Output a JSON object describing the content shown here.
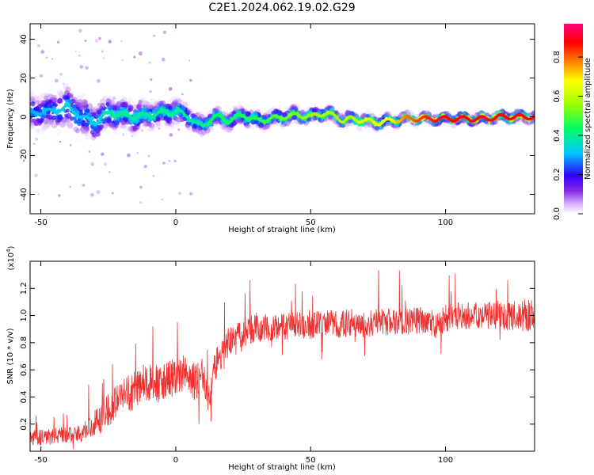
{
  "figure_title": "C2E1.2024.062.19.02.G29",
  "chart_data": [
    {
      "type": "heatmap",
      "title": "",
      "xlabel": "Height of straight line (km)",
      "ylabel": "Frequency (Hz)",
      "xlim": [
        -54,
        133
      ],
      "ylim": [
        -50,
        48
      ],
      "xticks": [
        -50,
        0,
        50,
        100
      ],
      "yticks": [
        -40,
        -20,
        0,
        20,
        40
      ],
      "xtick_labels": [
        "-50",
        "0",
        "50",
        "100"
      ],
      "ytick_labels": [
        "-40",
        "-20",
        "0",
        "20",
        "40"
      ],
      "grid": false,
      "colormap": "rainbow (purple → blue → cyan → green → yellow → red → magenta)",
      "colorbar": {
        "label": "Normalized spectral amplitude",
        "range": [
          0,
          0.97
        ],
        "ticks": [
          0.0,
          0.2,
          0.4,
          0.6,
          0.8
        ],
        "tick_labels": [
          "0.0",
          "0.2",
          "0.4",
          "0.6",
          "0.8"
        ]
      },
      "ridge": {
        "x": [
          -54,
          -45,
          -40,
          -35,
          -30,
          -25,
          -20,
          -15,
          -10,
          -5,
          0,
          5,
          8,
          10,
          13,
          15,
          20,
          25,
          30,
          35,
          40,
          45,
          50,
          55,
          60,
          62,
          65,
          70,
          75,
          80,
          85,
          90,
          95,
          100,
          105,
          110,
          115,
          120,
          125,
          130,
          133
        ],
        "y": [
          2,
          3,
          5,
          0,
          -3,
          2,
          1,
          0,
          1,
          2,
          3,
          0,
          -4,
          -5,
          -1,
          0,
          -2,
          1,
          -2,
          -1,
          0,
          1,
          0,
          2,
          0,
          -2,
          -1,
          -2,
          -3,
          -2,
          -1,
          -1,
          -1,
          -1,
          -1,
          -1,
          -1,
          0,
          0,
          0,
          0
        ],
        "amplitude": [
          0.3,
          0.32,
          0.35,
          0.32,
          0.34,
          0.4,
          0.42,
          0.42,
          0.4,
          0.42,
          0.42,
          0.4,
          0.4,
          0.42,
          0.45,
          0.45,
          0.45,
          0.48,
          0.48,
          0.5,
          0.55,
          0.55,
          0.6,
          0.6,
          0.6,
          0.6,
          0.62,
          0.65,
          0.68,
          0.7,
          0.8,
          0.85,
          0.88,
          0.9,
          0.9,
          0.92,
          0.92,
          0.92,
          0.9,
          0.9,
          0.9
        ],
        "spread_hz": [
          8,
          9,
          10,
          10,
          9,
          8,
          7,
          7,
          6,
          6,
          6,
          5,
          5,
          5,
          4,
          4,
          4,
          4,
          4,
          3.5,
          3.5,
          3.5,
          3,
          3,
          3,
          3,
          3,
          3,
          2.5,
          2.5,
          2,
          2,
          2,
          2,
          2,
          2,
          2,
          2,
          2,
          2,
          2
        ]
      }
    },
    {
      "type": "line",
      "title": "",
      "xlabel": "Height of straight line (km)",
      "ylabel": "SNR (10 * v/v)",
      "y_multiplier_label": "(x10",
      "y_multiplier_exponent": "4",
      "y_multiplier_close": ")",
      "xlim": [
        -54,
        133
      ],
      "ylim": [
        0,
        1.4
      ],
      "xticks": [
        -50,
        0,
        50,
        100
      ],
      "yticks": [
        0.2,
        0.4,
        0.6,
        0.8,
        1.0,
        1.2
      ],
      "xtick_labels": [
        "-50",
        "0",
        "50",
        "100"
      ],
      "ytick_labels": [
        "0.2",
        "0.4",
        "0.6",
        "0.8",
        "1.0",
        "1.2"
      ],
      "grid": false,
      "series": [
        {
          "color": "#f03030",
          "x": [
            -54,
            -50,
            -45,
            -40,
            -35,
            -30,
            -25,
            -20,
            -15,
            -12,
            -10,
            -5,
            0,
            3,
            5,
            10,
            12,
            15,
            20,
            25,
            30,
            35,
            40,
            45,
            50,
            55,
            60,
            65,
            70,
            75,
            80,
            85,
            90,
            95,
            97,
            100,
            105,
            110,
            115,
            120,
            125,
            130,
            133
          ],
          "y": [
            0.1,
            0.1,
            0.11,
            0.12,
            0.14,
            0.2,
            0.3,
            0.4,
            0.45,
            0.55,
            0.5,
            0.5,
            0.55,
            0.58,
            0.5,
            0.55,
            0.35,
            0.65,
            0.8,
            0.85,
            0.92,
            0.9,
            0.92,
            0.93,
            0.92,
            0.95,
            0.93,
            0.95,
            0.93,
            0.95,
            0.95,
            0.95,
            0.97,
            0.95,
            0.9,
            0.98,
            1.0,
            1.0,
            1.0,
            1.0,
            1.0,
            1.0,
            1.0
          ],
          "noise_amplitude": [
            0.06,
            0.06,
            0.06,
            0.06,
            0.07,
            0.1,
            0.12,
            0.13,
            0.14,
            0.15,
            0.14,
            0.14,
            0.14,
            0.14,
            0.14,
            0.14,
            0.14,
            0.13,
            0.12,
            0.11,
            0.11,
            0.1,
            0.1,
            0.1,
            0.1,
            0.1,
            0.1,
            0.1,
            0.1,
            0.1,
            0.1,
            0.1,
            0.1,
            0.1,
            0.12,
            0.1,
            0.1,
            0.1,
            0.1,
            0.11,
            0.11,
            0.12,
            0.12
          ]
        }
      ]
    }
  ]
}
